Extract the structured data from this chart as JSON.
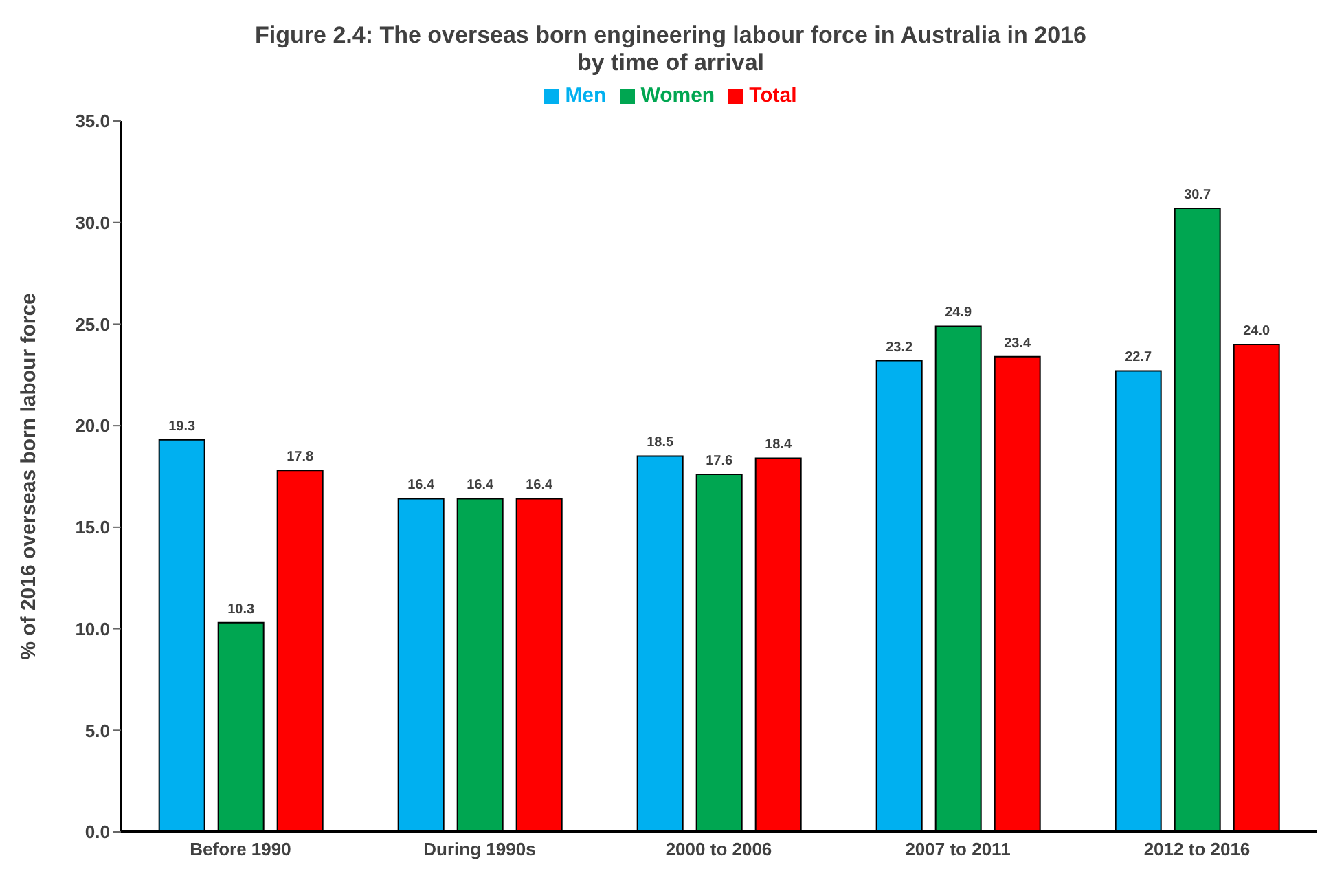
{
  "chart_data": {
    "type": "bar",
    "title": "Figure 2.4: The overseas born engineering labour force in Australia in 2016\nby time of arrival",
    "ylabel": "% of 2016 overseas born labour force",
    "categories": [
      "Before 1990",
      "During 1990s",
      "2000 to 2006",
      "2007 to 2011",
      "2012 to 2016"
    ],
    "series": [
      {
        "name": "Men",
        "color": "#00b0f0",
        "values": [
          19.3,
          16.4,
          18.5,
          23.2,
          22.7
        ],
        "value_labels": [
          "19.3",
          "16.4",
          "18.5",
          "23.2",
          "22.7"
        ]
      },
      {
        "name": "Women",
        "color": "#00a651",
        "values": [
          10.3,
          16.4,
          17.6,
          24.9,
          30.7
        ],
        "value_labels": [
          "10.3",
          "16.4",
          "17.6",
          "24.9",
          "30.7"
        ]
      },
      {
        "name": "Total",
        "color": "#ff0000",
        "values": [
          17.8,
          16.4,
          18.4,
          23.4,
          24.0
        ],
        "value_labels": [
          "17.8",
          "16.4",
          "18.4",
          "23.4",
          "24.0"
        ]
      }
    ],
    "ylim": [
      0,
      35
    ],
    "yticks": [
      {
        "value": 0,
        "label": "0.0"
      },
      {
        "value": 5,
        "label": "5.0"
      },
      {
        "value": 10,
        "label": "10.0"
      },
      {
        "value": 15,
        "label": "15.0"
      },
      {
        "value": 20,
        "label": "20.0"
      },
      {
        "value": 25,
        "label": "25.0"
      },
      {
        "value": 30,
        "label": "30.0"
      },
      {
        "value": 35,
        "label": "35.0"
      }
    ],
    "grid": false,
    "legend": "top"
  }
}
